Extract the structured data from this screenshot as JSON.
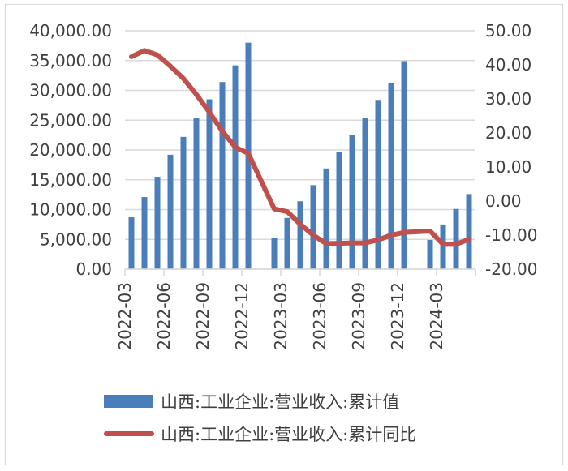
{
  "chart_data": {
    "type": "bar+line",
    "title": "",
    "categories": [
      "2022-03",
      "2022-04",
      "2022-05",
      "2022-06",
      "2022-07",
      "2022-08",
      "2022-09",
      "2022-10",
      "2022-11",
      "2022-12",
      "2023-01",
      "2023-02",
      "2023-03",
      "2023-04",
      "2023-05",
      "2023-06",
      "2023-07",
      "2023-08",
      "2023-09",
      "2023-10",
      "2023-11",
      "2023-12",
      "2024-01",
      "2024-02",
      "2024-03",
      "2024-04",
      "2024-05"
    ],
    "x_tick_labels": [
      "2022-03",
      "2022-06",
      "2022-09",
      "2022-12",
      "2023-03",
      "2023-06",
      "2023-09",
      "2023-12",
      "2024-03"
    ],
    "series": [
      {
        "name": "山西:工业企业:营业收入:累计值",
        "type": "bar",
        "axis": "left",
        "color": "#4a7ebb",
        "values": [
          8700,
          12100,
          15500,
          19200,
          22200,
          25300,
          28500,
          31400,
          34200,
          38000,
          null,
          5300,
          8600,
          11400,
          14100,
          16900,
          19700,
          22500,
          25300,
          28400,
          31300,
          34900,
          null,
          4900,
          7500,
          10100,
          12600
        ]
      },
      {
        "name": "山西:工业企业:营业收入:累计同比",
        "type": "line",
        "axis": "right",
        "color": "#c0504d",
        "values": [
          42.4,
          44.2,
          42.9,
          39.6,
          36.0,
          31.3,
          26.1,
          20.5,
          15.8,
          14.0,
          null,
          -2.3,
          -3.1,
          -6.8,
          -10.0,
          -12.5,
          -12.4,
          -12.3,
          -12.3,
          -11.4,
          -10.0,
          -9.2,
          null,
          -8.8,
          -12.7,
          -12.7,
          -11.2
        ]
      }
    ],
    "left_axis": {
      "min": 0,
      "max": 40000,
      "step": 5000,
      "tick_labels": [
        "0.00",
        "5,000.00",
        "10,000.00",
        "15,000.00",
        "20,000.00",
        "25,000.00",
        "30,000.00",
        "35,000.00",
        "40,000.00"
      ]
    },
    "right_axis": {
      "min": -20,
      "max": 50,
      "step": 10,
      "tick_labels": [
        "-20.00",
        "-10.00",
        "0.00",
        "10.00",
        "20.00",
        "30.00",
        "40.00",
        "50.00"
      ]
    },
    "xlabel": "",
    "ylabel": "",
    "y2label": "",
    "grid": true,
    "legend_position": "bottom"
  },
  "legend": {
    "items": [
      {
        "label": "山西:工业企业:营业收入:累计值"
      },
      {
        "label": "山西:工业企业:营业收入:累计同比"
      }
    ]
  }
}
